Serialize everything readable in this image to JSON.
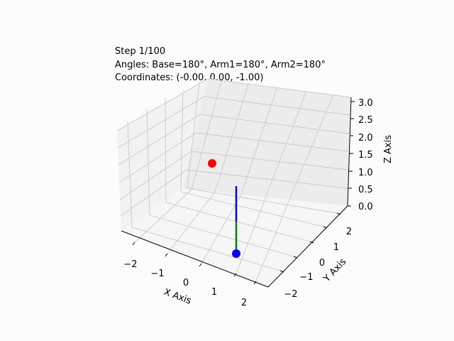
{
  "chart_data": {
    "type": "scatter",
    "projection": "3d",
    "title_lines": [
      "Step 1/100",
      "Angles: Base=180°, Arm1=180°, Arm2=180°",
      "Coordinates: (-0.00, 0.00, -1.00)"
    ],
    "xlabel": "X Axis",
    "ylabel": "Y Axis",
    "zlabel": "Z Axis",
    "xlim": [
      -2.5,
      2.5
    ],
    "ylim": [
      -2.5,
      2.5
    ],
    "zlim": [
      0,
      3
    ],
    "x_ticks": [
      "−2",
      "−1",
      "0",
      "1",
      "2"
    ],
    "y_ticks": [
      "−2",
      "−1",
      "0",
      "1",
      "2"
    ],
    "z_ticks": [
      "0.0",
      "0.5",
      "1.0",
      "1.5",
      "2.0",
      "2.5",
      "3.0"
    ],
    "grid": true,
    "arm_segments": [
      {
        "name": "arm1",
        "color": "#0000ff",
        "from": [
          0,
          0,
          0
        ],
        "to": [
          0,
          0,
          1
        ]
      },
      {
        "name": "arm2",
        "color": "#008000",
        "from": [
          0,
          0,
          1
        ],
        "to": [
          0,
          0,
          0
        ]
      }
    ],
    "points": [
      {
        "name": "target",
        "color": "#ff0000",
        "x": -1.5,
        "y": 1.5,
        "z": 1.2
      },
      {
        "name": "end-effector",
        "color": "#0000ff",
        "x": 0.0,
        "y": 0.0,
        "z": -1.0
      }
    ]
  }
}
